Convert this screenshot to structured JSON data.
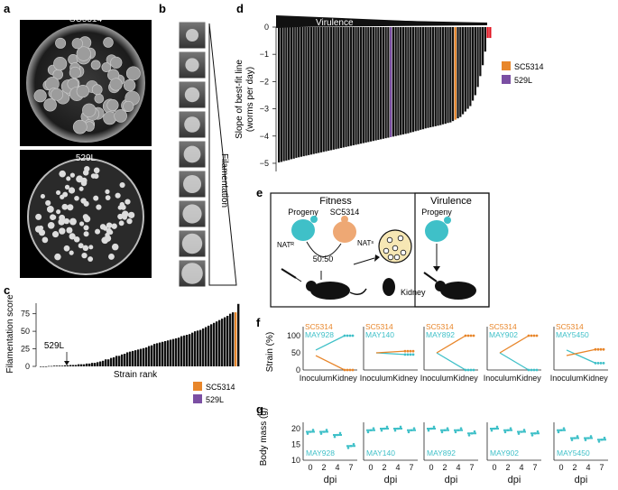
{
  "panels": {
    "a": "a",
    "b": "b",
    "c": "c",
    "d": "d",
    "e": "e",
    "f": "f",
    "g": "g"
  },
  "panel_a": {
    "top_label": "SC5314",
    "bottom_label": "529L"
  },
  "panel_b": {
    "label": "Filamentation"
  },
  "colors": {
    "sc5314": "#e8862a",
    "l529": "#7b4fa3",
    "teal": "#3fc0c8",
    "red": "#e0121f",
    "bar": "#111111"
  },
  "panel_c": {
    "ylabel": "Filamentation score",
    "xlabel": "Strain rank",
    "annotation": "529L",
    "legend": [
      {
        "name": "SC5314",
        "color": "#e8862a"
      },
      {
        "name": "529L",
        "color": "#7b4fa3"
      }
    ],
    "yticks": [
      "0",
      "25",
      "50",
      "75"
    ]
  },
  "panel_d": {
    "header": "Virulence",
    "ylabel_line1": "Slope of best-fit line",
    "ylabel_line2": "(worms per day)",
    "yticks": [
      "0",
      "−1",
      "−2",
      "−3",
      "−4",
      "−5"
    ],
    "legend": [
      {
        "name": "SC5314",
        "color": "#e8862a"
      },
      {
        "name": "529L",
        "color": "#7b4fa3"
      }
    ]
  },
  "panel_e": {
    "fitness_title": "Fitness",
    "virulence_title": "Virulence",
    "progeny": "Progeny",
    "progeny2": "Progeny",
    "sc5314": "SC5314",
    "nat_r": "NATᴿ",
    "nat_s": "NATˢ",
    "ratio": "50:50",
    "kidney": "Kidney"
  },
  "panel_f": {
    "ylabel": "Strain (%)",
    "yticks": [
      "0",
      "50",
      "100"
    ],
    "xticks": [
      "Inoculum",
      "Kidney"
    ],
    "subpanels": [
      {
        "top": "SC5314",
        "strain": "MAY928"
      },
      {
        "top": "SC5314",
        "strain": "MAY140"
      },
      {
        "top": "SC5314",
        "strain": "MAY892"
      },
      {
        "top": "SC5314",
        "strain": "MAY902"
      },
      {
        "top": "SC5314",
        "strain": "MAY5450"
      }
    ]
  },
  "panel_g": {
    "ylabel": "Body mass (g)",
    "yticks": [
      "10",
      "15",
      "20"
    ],
    "xticks": [
      "0",
      "2",
      "4",
      "7"
    ],
    "xlabel": "dpi",
    "strains": [
      "MAY928",
      "MAY140",
      "MAY892",
      "MAY902",
      "MAY5450"
    ]
  },
  "chart_data": [
    {
      "type": "bar",
      "title": "",
      "xlabel": "Strain rank",
      "ylabel": "Filamentation score",
      "ylim": [
        0,
        90
      ],
      "values": [
        0,
        0,
        0,
        0.5,
        0.5,
        1,
        1,
        1,
        1,
        1.5,
        1.5,
        2,
        2,
        2,
        3,
        3,
        3,
        4,
        4,
        5,
        5,
        6,
        7,
        8,
        10,
        10,
        12,
        13,
        15,
        15,
        17,
        18,
        20,
        21,
        22,
        23,
        24,
        25,
        26,
        27,
        29,
        30,
        32,
        33,
        34,
        35,
        36,
        37,
        38,
        39,
        40,
        41,
        43,
        44,
        45,
        46,
        48,
        50,
        51,
        52,
        54,
        56,
        58,
        60,
        62,
        64,
        66,
        68,
        70,
        72,
        75,
        77,
        77,
        89
      ],
      "highlight": {
        "SC5314": 72
      }
    },
    {
      "type": "bar",
      "title": "",
      "xlabel": "",
      "ylabel": "Slope of best-fit line (worms per day)",
      "ylim": [
        -5.3,
        0
      ],
      "values": [
        -4.97,
        -4.95,
        -4.92,
        -4.9,
        -4.88,
        -4.85,
        -4.83,
        -4.8,
        -4.78,
        -4.76,
        -4.74,
        -4.72,
        -4.7,
        -4.68,
        -4.66,
        -4.64,
        -4.62,
        -4.6,
        -4.58,
        -4.56,
        -4.54,
        -4.52,
        -4.5,
        -4.48,
        -4.46,
        -4.44,
        -4.42,
        -4.4,
        -4.38,
        -4.36,
        -4.34,
        -4.32,
        -4.3,
        -4.28,
        -4.26,
        -4.24,
        -4.22,
        -4.2,
        -4.18,
        -4.16,
        -4.14,
        -4.12,
        -4.1,
        -4.08,
        -4.06,
        -4.04,
        -4.02,
        -4.0,
        -3.98,
        -3.96,
        -3.94,
        -3.92,
        -3.9,
        -3.87,
        -3.85,
        -3.82,
        -3.8,
        -3.77,
        -3.75,
        -3.72,
        -3.7,
        -3.68,
        -3.66,
        -3.64,
        -3.62,
        -3.6,
        -3.57,
        -3.55,
        -3.52,
        -3.5,
        -3.45,
        -3.4,
        -3.35,
        -3.3,
        -3.2,
        -3.1,
        -3.0,
        -2.9,
        -2.7,
        -2.5,
        -2.2,
        -1.8,
        -1.4,
        -0.9,
        -0.4,
        -0.4
      ],
      "highlight": {
        "529L": 45,
        "SC5314": 71
      }
    }
  ]
}
